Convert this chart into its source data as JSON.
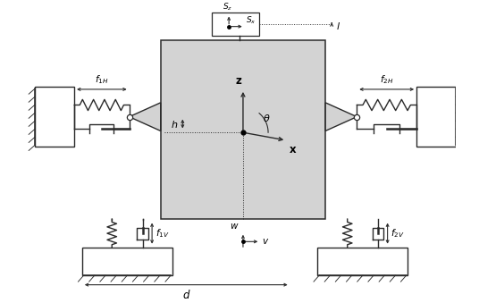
{
  "bg_color": "#ffffff",
  "plate_color": "#d3d3d3",
  "line_color": "#2a2a2a",
  "text_color": "#000000",
  "fig_w": 5.36,
  "fig_h": 3.39,
  "dpi": 100
}
